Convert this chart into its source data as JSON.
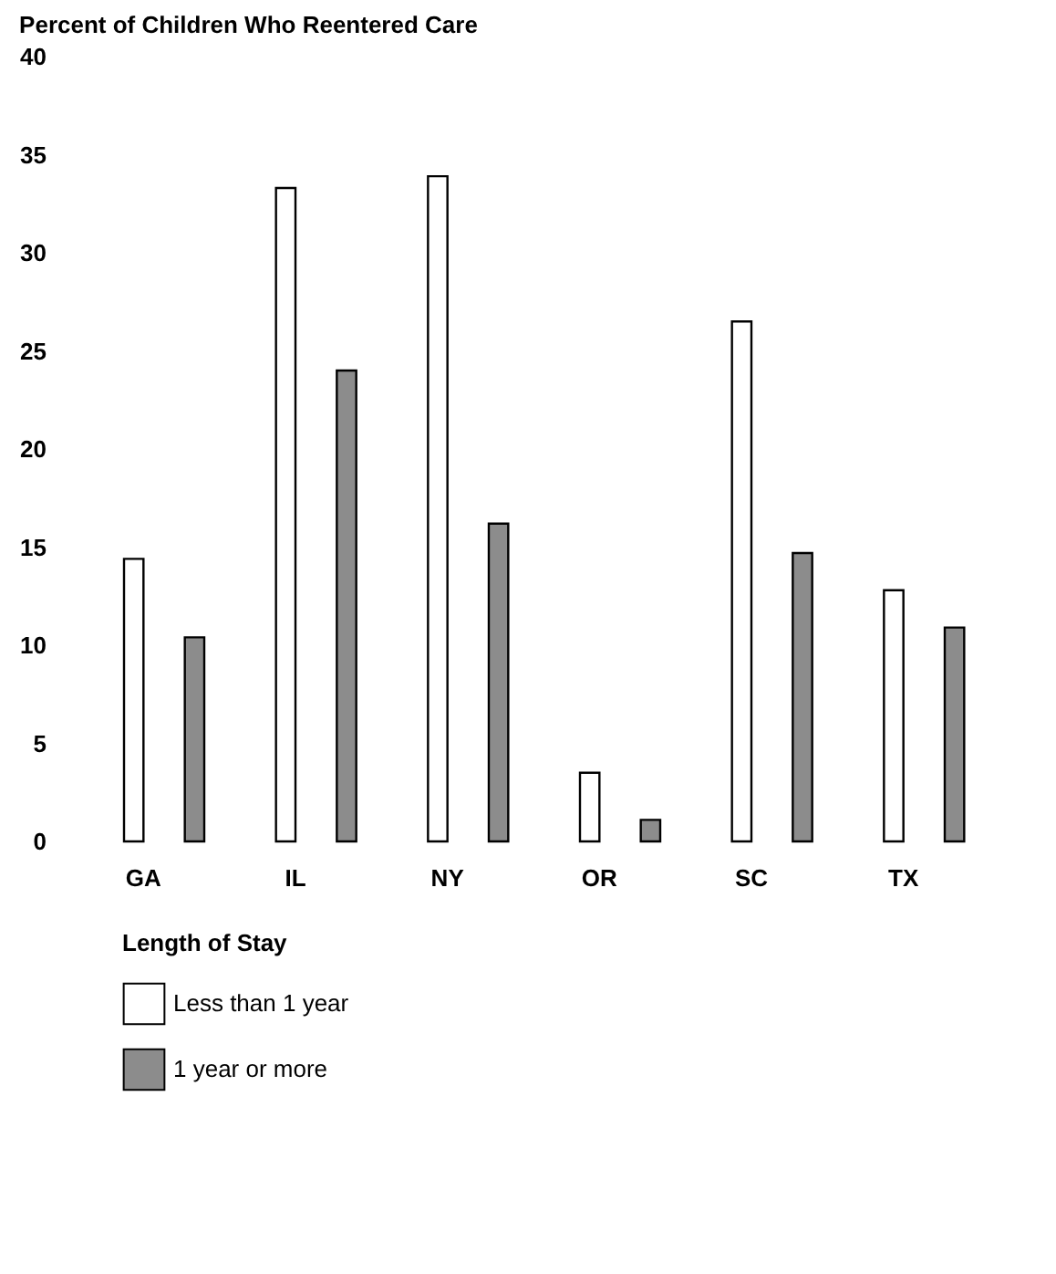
{
  "chart_data": {
    "type": "bar",
    "title": "Percent of Children Who Reentered Care",
    "legend_title": "Length of Stay",
    "categories": [
      "GA",
      "IL",
      "NY",
      "OR",
      "SC",
      "TX"
    ],
    "series": [
      {
        "name": "Less than 1 year",
        "color": "#ffffff",
        "values": [
          14.4,
          33.3,
          33.9,
          3.5,
          26.5,
          12.8
        ]
      },
      {
        "name": "1 year or more",
        "color": "#8c8c8c",
        "values": [
          10.4,
          24.0,
          16.2,
          1.1,
          14.7,
          10.9
        ]
      }
    ],
    "ylim": [
      0,
      40
    ],
    "yticks": [
      0,
      5,
      10,
      15,
      20,
      25,
      30,
      35,
      40
    ],
    "legend": "bottom left"
  }
}
